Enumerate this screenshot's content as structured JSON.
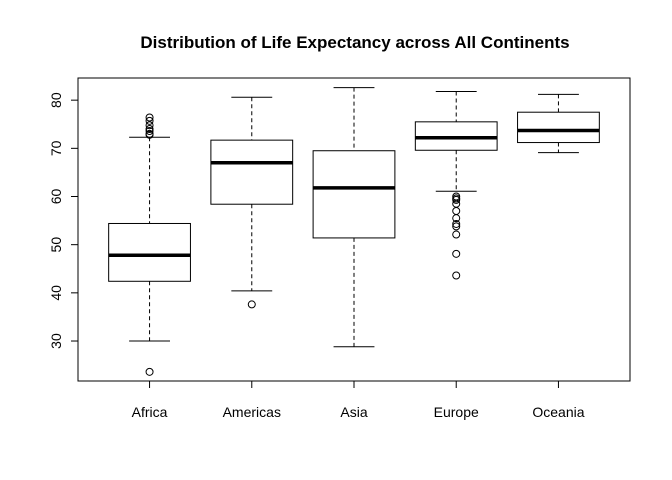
{
  "chart_data": {
    "type": "box",
    "title": "Distribution of Life Expectancy across All Continents",
    "xlabel": "",
    "ylabel": "",
    "ylim": [
      21.7,
      84.6
    ],
    "yticks": [
      30,
      40,
      50,
      60,
      70,
      80
    ],
    "grid": false,
    "categories": [
      "Africa",
      "Americas",
      "Asia",
      "Europe",
      "Oceania"
    ],
    "boxes": [
      {
        "category": "Africa",
        "whisker_low": 30.0,
        "q1": 42.4,
        "median": 47.8,
        "q3": 54.4,
        "whisker_high": 72.3,
        "outliers": [
          72.8,
          73.0,
          73.6,
          74.0,
          74.8,
          75.7,
          76.4,
          23.6
        ]
      },
      {
        "category": "Americas",
        "whisker_low": 40.4,
        "q1": 58.4,
        "median": 67.0,
        "q3": 71.7,
        "whisker_high": 80.6,
        "outliers": [
          37.6
        ]
      },
      {
        "category": "Asia",
        "whisker_low": 28.8,
        "q1": 51.4,
        "median": 61.8,
        "q3": 69.5,
        "whisker_high": 82.6,
        "outliers": []
      },
      {
        "category": "Europe",
        "whisker_low": 61.1,
        "q1": 69.6,
        "median": 72.2,
        "q3": 75.5,
        "whisker_high": 81.8,
        "outliers": [
          60.0,
          59.6,
          59.3,
          58.5,
          57.0,
          55.5,
          54.3,
          53.8,
          52.1,
          48.1,
          43.6
        ]
      },
      {
        "category": "Oceania",
        "whisker_low": 69.1,
        "q1": 71.2,
        "median": 73.7,
        "q3": 77.5,
        "whisker_high": 81.2,
        "outliers": []
      }
    ]
  }
}
